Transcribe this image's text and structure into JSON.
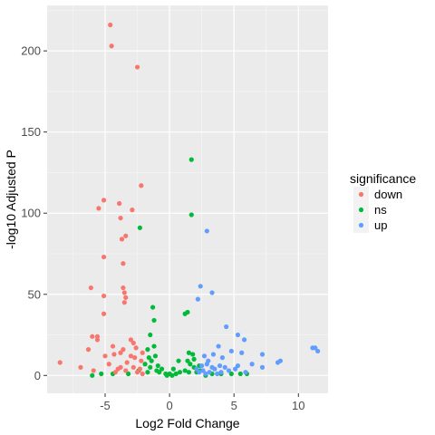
{
  "chart_data": {
    "type": "scatter",
    "xlabel": "Log2 Fold Change",
    "ylabel": "-log10 Adjusted P",
    "xlim": [
      -9.5,
      12.3
    ],
    "ylim": [
      -11,
      228
    ],
    "x_ticks": [
      -5,
      0,
      5,
      10
    ],
    "y_ticks": [
      0,
      50,
      100,
      150,
      200
    ],
    "grid": true,
    "legend": {
      "title": "significance",
      "placement": "right",
      "entries": [
        {
          "name": "down",
          "color": "#F8766D"
        },
        {
          "name": "ns",
          "color": "#00BA38"
        },
        {
          "name": "up",
          "color": "#619CFF"
        }
      ]
    },
    "series": [
      {
        "name": "down",
        "color": "#F8766D",
        "points": [
          [
            -4.6,
            216
          ],
          [
            -4.5,
            203
          ],
          [
            -2.5,
            190
          ],
          [
            -2.2,
            117
          ],
          [
            -5.1,
            108
          ],
          [
            -3.9,
            106
          ],
          [
            -5.5,
            103
          ],
          [
            -2.9,
            102
          ],
          [
            -3.8,
            97
          ],
          [
            -3.4,
            86
          ],
          [
            -3.7,
            84
          ],
          [
            -5.1,
            73
          ],
          [
            -3.6,
            69
          ],
          [
            -6.1,
            54
          ],
          [
            -3.6,
            54
          ],
          [
            -3.5,
            51
          ],
          [
            -5.1,
            49
          ],
          [
            -3.4,
            48
          ],
          [
            -3.5,
            45
          ],
          [
            -5.1,
            38
          ],
          [
            -6.0,
            24
          ],
          [
            -5.6,
            24
          ],
          [
            -5.6,
            22
          ],
          [
            -3.0,
            22
          ],
          [
            -2.8,
            20
          ],
          [
            -4.4,
            18
          ],
          [
            -2.6,
            17
          ],
          [
            -6.3,
            16
          ],
          [
            -3.6,
            16
          ],
          [
            -3.8,
            14
          ],
          [
            -2.1,
            14
          ],
          [
            -4.3,
            13
          ],
          [
            -5.0,
            12
          ],
          [
            -3.0,
            12
          ],
          [
            -2.7,
            11
          ],
          [
            -8.5,
            8
          ],
          [
            -2.2,
            9
          ],
          [
            -3.3,
            8
          ],
          [
            -4.7,
            7
          ],
          [
            -6.9,
            5
          ],
          [
            -3.8,
            5
          ],
          [
            -2.8,
            5
          ],
          [
            -4.0,
            4
          ],
          [
            -2.3,
            4
          ],
          [
            -5.9,
            3
          ],
          [
            -3.4,
            3
          ],
          [
            -2.5,
            2
          ],
          [
            -4.2,
            2
          ],
          [
            -2.1,
            1
          ]
        ]
      },
      {
        "name": "ns",
        "color": "#00BA38",
        "points": [
          [
            1.7,
            133
          ],
          [
            1.7,
            99
          ],
          [
            -2.3,
            91
          ],
          [
            -1.3,
            42
          ],
          [
            1.4,
            39
          ],
          [
            1.2,
            38
          ],
          [
            -1.2,
            34
          ],
          [
            -1.5,
            25
          ],
          [
            -1.2,
            18
          ],
          [
            -1.7,
            16
          ],
          [
            1.5,
            14
          ],
          [
            1.8,
            13
          ],
          [
            -1.1,
            12
          ],
          [
            -1.6,
            11
          ],
          [
            1.9,
            10
          ],
          [
            0.7,
            9
          ],
          [
            1.4,
            9
          ],
          [
            -1.4,
            9
          ],
          [
            1.6,
            7
          ],
          [
            -1.9,
            7
          ],
          [
            2.3,
            6
          ],
          [
            -0.9,
            6
          ],
          [
            1.9,
            5
          ],
          [
            -1.5,
            5
          ],
          [
            0.3,
            4
          ],
          [
            -0.6,
            4
          ],
          [
            2.4,
            3
          ],
          [
            -2.4,
            3
          ],
          [
            1.2,
            3
          ],
          [
            -1.0,
            3
          ],
          [
            0.8,
            2
          ],
          [
            -0.8,
            2
          ],
          [
            1.5,
            2
          ],
          [
            -1.7,
            2
          ],
          [
            2.1,
            2
          ],
          [
            0.0,
            1
          ],
          [
            -0.3,
            1
          ],
          [
            0.5,
            1
          ],
          [
            -3.2,
            1
          ],
          [
            3.3,
            1
          ],
          [
            4.0,
            1
          ],
          [
            4.8,
            1
          ],
          [
            5.5,
            1
          ],
          [
            6.0,
            1
          ],
          [
            -4.4,
            1
          ],
          [
            -5.3,
            1
          ],
          [
            -6.0,
            0
          ],
          [
            0.2,
            0
          ],
          [
            -0.2,
            0
          ],
          [
            2.8,
            0
          ]
        ]
      },
      {
        "name": "up",
        "color": "#619CFF",
        "points": [
          [
            2.9,
            89
          ],
          [
            2.4,
            55
          ],
          [
            3.3,
            51
          ],
          [
            2.2,
            47
          ],
          [
            4.4,
            30
          ],
          [
            5.3,
            25
          ],
          [
            5.8,
            22
          ],
          [
            3.8,
            18
          ],
          [
            11.1,
            17
          ],
          [
            11.3,
            17
          ],
          [
            11.5,
            15
          ],
          [
            4.8,
            15
          ],
          [
            7.2,
            13
          ],
          [
            5.6,
            14
          ],
          [
            3.4,
            13
          ],
          [
            2.7,
            12
          ],
          [
            4.1,
            11
          ],
          [
            3.0,
            9
          ],
          [
            8.6,
            9
          ],
          [
            8.4,
            8
          ],
          [
            6.4,
            7
          ],
          [
            2.9,
            7
          ],
          [
            3.9,
            6
          ],
          [
            2.5,
            6
          ],
          [
            5.3,
            6
          ],
          [
            7.2,
            5
          ],
          [
            4.3,
            5
          ],
          [
            3.3,
            5
          ],
          [
            2.1,
            4
          ],
          [
            3.5,
            4
          ],
          [
            5.1,
            4
          ],
          [
            2.6,
            3
          ],
          [
            4.6,
            3
          ],
          [
            3.1,
            2
          ],
          [
            2.3,
            2
          ],
          [
            4.0,
            2
          ],
          [
            5.9,
            2
          ],
          [
            2.8,
            1
          ],
          [
            3.7,
            1
          ]
        ]
      }
    ]
  }
}
